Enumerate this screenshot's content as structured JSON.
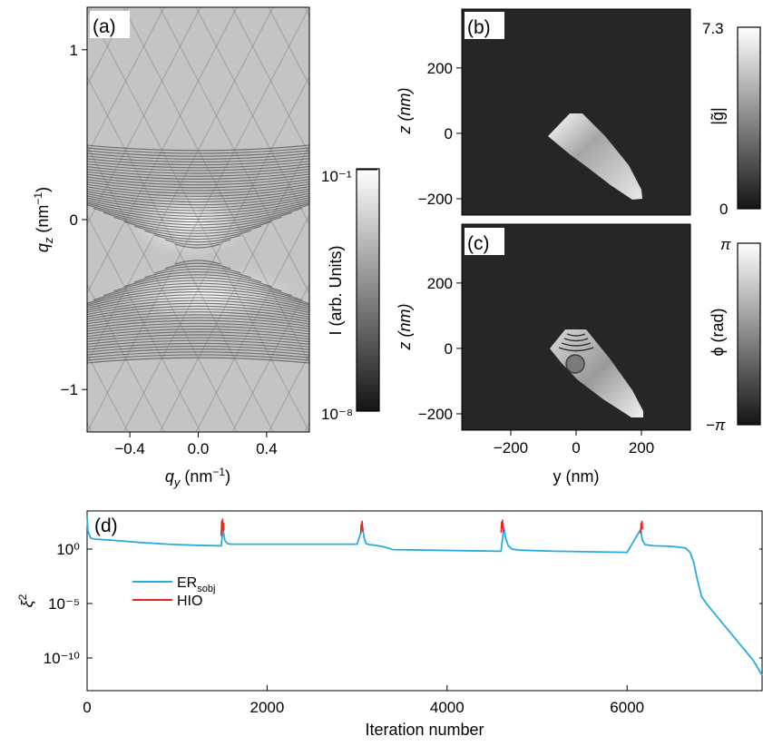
{
  "chart_data": [
    {
      "panel": "(a)",
      "type": "heatmap",
      "x_tick_labels": [
        "−0.4",
        "0.0",
        "0.4"
      ],
      "x_ticks": [
        -0.4,
        0.0,
        0.4
      ],
      "xlim": [
        -0.65,
        0.65
      ],
      "y_tick_labels": [
        "1",
        "0",
        "−1"
      ],
      "y_ticks": [
        1,
        0,
        -1
      ],
      "ylim": [
        -1.25,
        1.25
      ],
      "colorbar": {
        "label": "I (arb. Units)",
        "max_label": "10⁻¹",
        "min_label": "10⁻⁸",
        "max": 0.1,
        "min": 1e-08,
        "scale": "log"
      }
    },
    {
      "panel": "(b)",
      "type": "heatmap",
      "ylabel": "z (nm)",
      "y_tick_labels": [
        "200",
        "0",
        "−200"
      ],
      "y_ticks": [
        200,
        0,
        -200
      ],
      "ylim": [
        -250,
        380
      ],
      "xlim": [
        -350,
        350
      ],
      "colorbar": {
        "label": "|g̃|",
        "max_label": "7.3",
        "min_label": "0",
        "max": 7.3,
        "min": 0
      }
    },
    {
      "panel": "(c)",
      "type": "heatmap",
      "ylabel": "z (nm)",
      "xlabel": "y (nm)",
      "x_tick_labels": [
        "−200",
        "0",
        "200"
      ],
      "x_ticks": [
        -200,
        0,
        200
      ],
      "xlim": [
        -350,
        350
      ],
      "y_tick_labels": [
        "200",
        "0",
        "−200"
      ],
      "y_ticks": [
        200,
        0,
        -200
      ],
      "ylim": [
        -250,
        380
      ],
      "colorbar": {
        "label": "ϕ (rad)",
        "max_label": "π",
        "min_label": "−π",
        "max": 3.14159,
        "min": -3.14159
      }
    },
    {
      "panel": "(d)",
      "type": "line",
      "xlabel": "Iteration number",
      "yscale": "log",
      "xlim": [
        0,
        7500
      ],
      "ylim_exp": [
        -13,
        3.5
      ],
      "x_tick_labels": [
        "0",
        "2000",
        "4000",
        "6000"
      ],
      "x_ticks": [
        0,
        2000,
        4000,
        6000
      ],
      "y_tick_labels": [
        "10⁰",
        "10⁻⁵",
        "10⁻¹⁰"
      ],
      "y_ticks_exp": [
        0,
        -5,
        -10
      ],
      "legend_position": "left",
      "series": [
        {
          "name": "ER",
          "name_sub": "sobj",
          "color": "#29abe2",
          "x": [
            0,
            10,
            40,
            100,
            300,
            600,
            900,
            1200,
            1490,
            1510,
            1530,
            1560,
            1600,
            1800,
            2200,
            2600,
            3000,
            3060,
            3080,
            3100,
            3140,
            3200,
            3300,
            3400,
            3800,
            4200,
            4600,
            4630,
            4650,
            4680,
            4720,
            4800,
            5200,
            5600,
            6000,
            6150,
            6170,
            6200,
            6250,
            6300,
            6500,
            6650,
            6700,
            6740,
            6780,
            6830,
            6900,
            7000,
            7200,
            7400,
            7500
          ],
          "y_log10": [
            3.0,
            1.6,
            1.0,
            0.9,
            0.8,
            0.6,
            0.45,
            0.35,
            0.3,
            1.8,
            0.8,
            0.5,
            0.45,
            0.45,
            0.45,
            0.45,
            0.45,
            2.0,
            1.0,
            0.5,
            0.4,
            0.35,
            0.2,
            -0.05,
            -0.1,
            -0.15,
            -0.2,
            2.0,
            1.0,
            0.3,
            0.0,
            -0.1,
            -0.2,
            -0.25,
            -0.3,
            1.8,
            0.8,
            0.4,
            0.35,
            0.3,
            0.25,
            0.1,
            -0.3,
            -1.2,
            -2.8,
            -4.4,
            -5.2,
            -6.2,
            -8.2,
            -10.2,
            -11.6
          ]
        },
        {
          "name": "HIO",
          "color": "#e8261c",
          "x": [
            1490,
            1495,
            1500,
            1505,
            1510,
            1515,
            1520,
            3040,
            3045,
            3050,
            3055,
            3060,
            3065,
            4600,
            4605,
            4610,
            4615,
            4620,
            4625,
            6150,
            6155,
            6160,
            6165,
            6170
          ],
          "y_log10": [
            1.2,
            2.6,
            1.6,
            2.8,
            1.9,
            2.4,
            1.7,
            1.4,
            2.3,
            1.8,
            2.6,
            2.0,
            1.6,
            1.5,
            2.5,
            1.9,
            2.7,
            2.1,
            1.6,
            1.4,
            2.4,
            1.9,
            2.6,
            1.8
          ]
        }
      ]
    }
  ],
  "axes_text": {
    "a_ylabel_q": "q",
    "a_ylabel_sub": "z",
    "a_ylabel_unit": " (nm",
    "a_ylabel_sup": "−1",
    "a_ylabel_close": ")",
    "a_xlabel_q": "q",
    "a_xlabel_sub": "y",
    "a_xlabel_unit": " (nm",
    "a_xlabel_sup": "−1",
    "a_xlabel_close": ")",
    "d_ylabel": "ξ",
    "d_ylabel_sup": "2",
    "label_a": "(a)",
    "label_b": "(b)",
    "label_c": "(c)",
    "label_d": "(d)"
  }
}
